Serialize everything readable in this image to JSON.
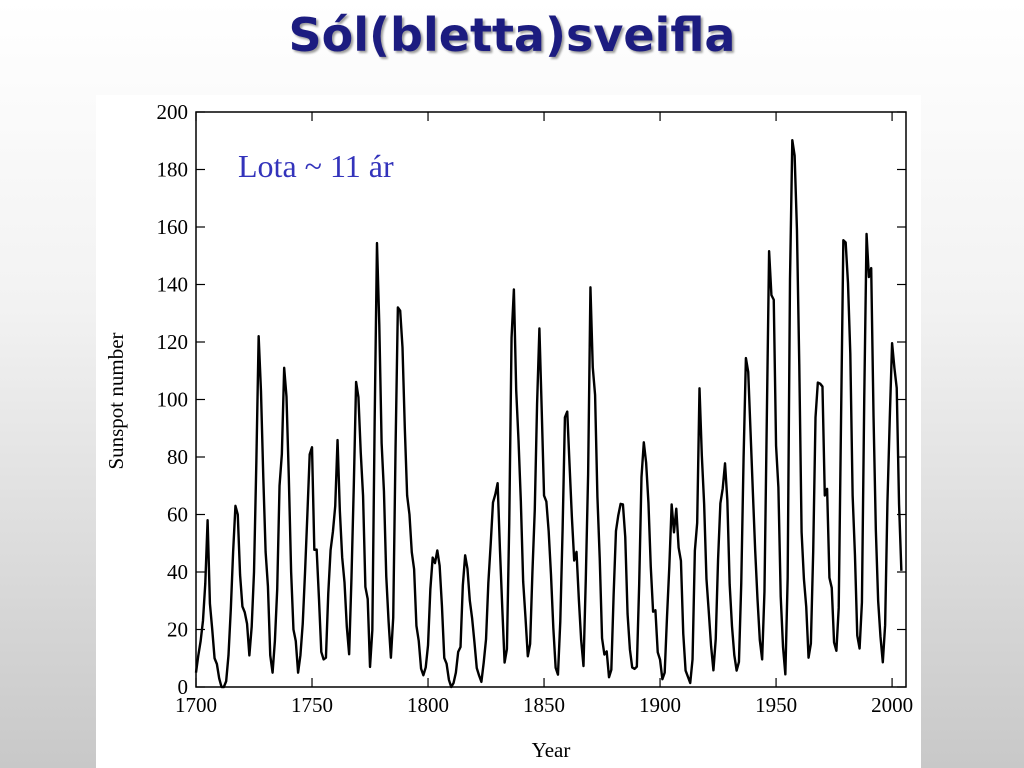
{
  "header": {
    "title": "Sól(bletta)sveifla"
  },
  "chart_data": {
    "type": "line",
    "annotation": "Lota ~ 11 ár",
    "xlabel": "Year",
    "ylabel": "Sunspot number",
    "xlim": [
      1700,
      2006
    ],
    "ylim": [
      0,
      200
    ],
    "xticks": [
      1700,
      1750,
      1800,
      1850,
      1900,
      1950,
      2000
    ],
    "yticks": [
      0,
      20,
      40,
      60,
      80,
      100,
      120,
      140,
      160,
      180,
      200
    ],
    "x": [
      1700,
      1701,
      1702,
      1703,
      1704,
      1705,
      1706,
      1707,
      1708,
      1709,
      1710,
      1711,
      1712,
      1713,
      1714,
      1715,
      1716,
      1717,
      1718,
      1719,
      1720,
      1721,
      1722,
      1723,
      1724,
      1725,
      1726,
      1727,
      1728,
      1729,
      1730,
      1731,
      1732,
      1733,
      1734,
      1735,
      1736,
      1737,
      1738,
      1739,
      1740,
      1741,
      1742,
      1743,
      1744,
      1745,
      1746,
      1747,
      1748,
      1749,
      1750,
      1751,
      1752,
      1753,
      1754,
      1755,
      1756,
      1757,
      1758,
      1759,
      1760,
      1761,
      1762,
      1763,
      1764,
      1765,
      1766,
      1767,
      1768,
      1769,
      1770,
      1771,
      1772,
      1773,
      1774,
      1775,
      1776,
      1777,
      1778,
      1779,
      1780,
      1781,
      1782,
      1783,
      1784,
      1785,
      1786,
      1787,
      1788,
      1789,
      1790,
      1791,
      1792,
      1793,
      1794,
      1795,
      1796,
      1797,
      1798,
      1799,
      1800,
      1801,
      1802,
      1803,
      1804,
      1805,
      1806,
      1807,
      1808,
      1809,
      1810,
      1811,
      1812,
      1813,
      1814,
      1815,
      1816,
      1817,
      1818,
      1819,
      1820,
      1821,
      1822,
      1823,
      1824,
      1825,
      1826,
      1827,
      1828,
      1829,
      1830,
      1831,
      1832,
      1833,
      1834,
      1835,
      1836,
      1837,
      1838,
      1839,
      1840,
      1841,
      1842,
      1843,
      1844,
      1845,
      1846,
      1847,
      1848,
      1849,
      1850,
      1851,
      1852,
      1853,
      1854,
      1855,
      1856,
      1857,
      1858,
      1859,
      1860,
      1861,
      1862,
      1863,
      1864,
      1865,
      1866,
      1867,
      1868,
      1869,
      1870,
      1871,
      1872,
      1873,
      1874,
      1875,
      1876,
      1877,
      1878,
      1879,
      1880,
      1881,
      1882,
      1883,
      1884,
      1885,
      1886,
      1887,
      1888,
      1889,
      1890,
      1891,
      1892,
      1893,
      1894,
      1895,
      1896,
      1897,
      1898,
      1899,
      1900,
      1901,
      1902,
      1903,
      1904,
      1905,
      1906,
      1907,
      1908,
      1909,
      1910,
      1911,
      1912,
      1913,
      1914,
      1915,
      1916,
      1917,
      1918,
      1919,
      1920,
      1921,
      1922,
      1923,
      1924,
      1925,
      1926,
      1927,
      1928,
      1929,
      1930,
      1931,
      1932,
      1933,
      1934,
      1935,
      1936,
      1937,
      1938,
      1939,
      1940,
      1941,
      1942,
      1943,
      1944,
      1945,
      1946,
      1947,
      1948,
      1949,
      1950,
      1951,
      1952,
      1953,
      1954,
      1955,
      1956,
      1957,
      1958,
      1959,
      1960,
      1961,
      1962,
      1963,
      1964,
      1965,
      1966,
      1967,
      1968,
      1969,
      1970,
      1971,
      1972,
      1973,
      1974,
      1975,
      1976,
      1977,
      1978,
      1979,
      1980,
      1981,
      1982,
      1983,
      1984,
      1985,
      1986,
      1987,
      1988,
      1989,
      1990,
      1991,
      1992,
      1993,
      1994,
      1995,
      1996,
      1997,
      1998,
      1999,
      2000,
      2001,
      2002,
      2003,
      2004
    ],
    "series": [
      {
        "color": "#000000",
        "values": [
          5,
          11,
          16,
          23,
          36,
          58,
          29,
          20,
          10,
          8,
          3,
          0,
          0,
          2,
          11,
          27,
          47,
          63,
          60,
          39,
          28,
          26,
          22,
          11,
          21,
          40,
          78,
          122,
          103,
          73,
          47,
          35,
          11,
          5,
          16,
          34,
          70,
          81,
          111,
          101,
          73,
          40,
          20,
          16,
          5,
          11,
          22,
          40,
          60,
          80.9,
          83.4,
          47.7,
          47.8,
          30.7,
          12.2,
          9.6,
          10.2,
          32.4,
          47.6,
          54,
          62.9,
          85.9,
          61.2,
          45.1,
          36.4,
          20.9,
          11.4,
          37.8,
          69.8,
          106.1,
          100.8,
          81.6,
          66.5,
          34.8,
          30.6,
          7,
          19.8,
          92.5,
          154.4,
          125.9,
          84.8,
          68.1,
          38.5,
          22.8,
          10.2,
          24.1,
          82.9,
          132,
          130.9,
          118.1,
          89.9,
          66.6,
          60,
          46.9,
          41,
          21.3,
          16,
          6.4,
          4.1,
          6.8,
          14.5,
          34,
          45,
          43.1,
          47.5,
          42.2,
          28.1,
          10.1,
          8.1,
          2.5,
          0,
          1.4,
          5,
          12.2,
          13.9,
          35.4,
          45.8,
          41.1,
          30.1,
          23.9,
          15.6,
          6.6,
          4,
          1.8,
          8.5,
          16.6,
          36.3,
          49.6,
          64.2,
          67,
          70.9,
          47.8,
          27.5,
          8.5,
          13.2,
          56.9,
          121.5,
          138.3,
          103.2,
          85.7,
          64.6,
          36.7,
          24.2,
          10.7,
          15,
          40.1,
          61.5,
          98.5,
          124.7,
          96.3,
          66.6,
          64.5,
          54.1,
          39,
          20.6,
          6.7,
          4.3,
          22.7,
          54.8,
          93.8,
          95.8,
          77.2,
          59.1,
          44,
          47,
          30.5,
          16.3,
          7.3,
          37.6,
          74,
          139,
          111.2,
          101.6,
          66.2,
          44.7,
          17,
          11.3,
          12.4,
          3.4,
          6,
          32.3,
          54.3,
          59.7,
          63.7,
          63.5,
          52.2,
          25.4,
          13.1,
          6.8,
          6.3,
          7.1,
          35.6,
          73,
          85.1,
          78,
          64,
          41.8,
          26.2,
          26.7,
          12.1,
          9.5,
          2.7,
          5,
          24.4,
          42,
          63.5,
          53.8,
          62,
          48.5,
          43.9,
          18.6,
          5.7,
          3.6,
          1.4,
          9.6,
          47.4,
          57.1,
          103.9,
          80.6,
          63.6,
          37.6,
          26.1,
          14.2,
          5.8,
          16.7,
          44.3,
          63.9,
          69,
          77.8,
          64.9,
          35.7,
          21.2,
          11.1,
          5.7,
          8.7,
          36.1,
          79.7,
          114.4,
          109.6,
          88.8,
          67.8,
          47.5,
          30.6,
          16.3,
          9.6,
          33.2,
          92.6,
          151.6,
          136.3,
          134.7,
          83.9,
          69.4,
          31.5,
          13.9,
          4.4,
          38,
          141.7,
          190.2,
          184.8,
          159,
          112.3,
          53.9,
          37.6,
          27.9,
          10.2,
          15.1,
          47,
          93.8,
          105.9,
          105.5,
          104.5,
          66.6,
          68.9,
          38,
          34.5,
          15.5,
          12.6,
          27.5,
          92.5,
          155.4,
          154.6,
          140.5,
          115.9,
          66.6,
          45.9,
          17.9,
          13.4,
          29.4,
          100.2,
          157.6,
          142.6,
          145.7,
          94.3,
          54.6,
          29.9,
          17.5,
          8.6,
          21.5,
          64.3,
          93.3,
          119.6,
          111,
          104,
          63.7,
          40.4
        ]
      }
    ]
  }
}
